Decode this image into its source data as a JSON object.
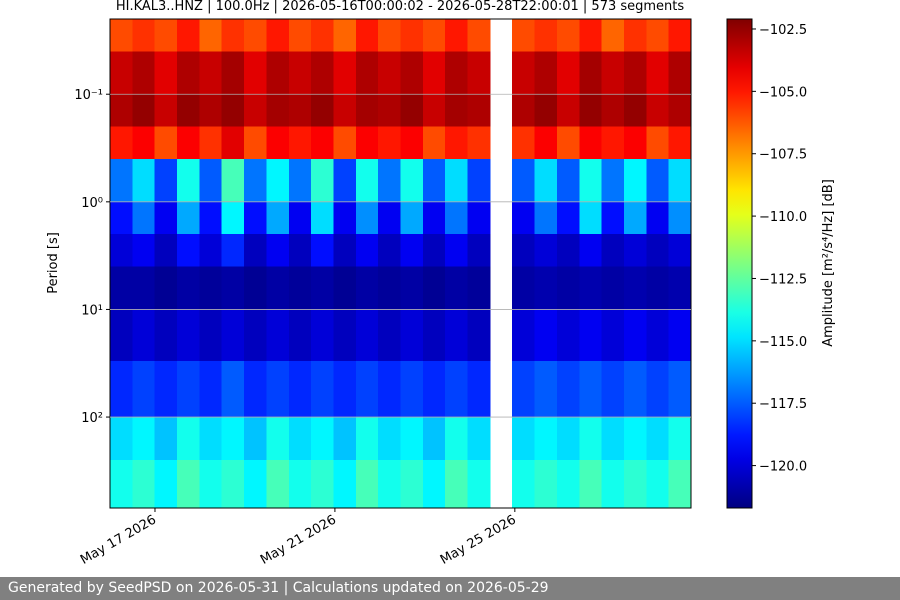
{
  "chart_data": {
    "type": "heatmap",
    "title": "HI.KAL3..HNZ | 100.0Hz | 2026-05-16T00:00:02 - 2026-05-28T22:00:01 | 573 segments",
    "ylabel": "Period [s]",
    "colorbar_label": "Amplitude [m²/s⁴/Hz] [dB]",
    "xlim": [
      "2026-05-16T00:00:02",
      "2026-05-28T22:00:01"
    ],
    "xticks": [
      {
        "value": "2026-05-17",
        "label": "May 17 2026"
      },
      {
        "value": "2026-05-21",
        "label": "May 21 2026"
      },
      {
        "value": "2026-05-25",
        "label": "May 25 2026"
      }
    ],
    "ylim": [
      0.02,
      700
    ],
    "log_y": true,
    "y_inverted": true,
    "yticks": [
      {
        "value": 0.1,
        "label": "10⁻¹"
      },
      {
        "value": 1,
        "label": "10⁰"
      },
      {
        "value": 10,
        "label": "10¹"
      },
      {
        "value": 100,
        "label": "10²"
      }
    ],
    "grid": true,
    "colormap": "jet",
    "clim": [
      -121.7,
      -102.1
    ],
    "cticks": [
      {
        "value": -102.5,
        "label": "−102.5"
      },
      {
        "value": -105,
        "label": "−105.0"
      },
      {
        "value": -107.5,
        "label": "−107.5"
      },
      {
        "value": -110,
        "label": "−110.0"
      },
      {
        "value": -112.5,
        "label": "−112.5"
      },
      {
        "value": -115,
        "label": "−115.0"
      },
      {
        "value": -117.5,
        "label": "−117.5"
      },
      {
        "value": -120,
        "label": "−120.0"
      }
    ],
    "ybins": [
      0.02,
      0.04,
      0.1,
      0.2,
      0.4,
      1,
      2,
      4,
      10,
      30,
      100,
      250,
      700
    ],
    "z": [
      [
        -106,
        -105.5,
        -106,
        -105,
        -106.5,
        -105.5,
        -106,
        -105,
        -106,
        -105.5,
        -106.5,
        -105,
        -106,
        -105.5,
        -106,
        -105,
        -106,
        null,
        -106,
        -105.5,
        -106,
        -105,
        -106.5,
        -105.5,
        -106,
        -105
      ],
      [
        -103.5,
        -103,
        -104,
        -103,
        -103.5,
        -102.8,
        -104,
        -103,
        -103.5,
        -103,
        -104,
        -103,
        -103.5,
        -103,
        -104,
        -103,
        -103.5,
        null,
        -103.5,
        -103,
        -104,
        -102.8,
        -103.5,
        -103,
        -104,
        -103
      ],
      [
        -103,
        -102.5,
        -103.5,
        -102.5,
        -103,
        -102.5,
        -103.5,
        -102.8,
        -103,
        -102.5,
        -103.5,
        -102.8,
        -103,
        -102.5,
        -103.5,
        -102.8,
        -103,
        null,
        -103,
        -102.5,
        -103.5,
        -102.5,
        -103,
        -102.5,
        -103.5,
        -103
      ],
      [
        -105,
        -104.5,
        -106,
        -104.5,
        -105.5,
        -104,
        -106,
        -104.5,
        -105,
        -104.5,
        -106,
        -104.5,
        -105,
        -104.5,
        -106,
        -105,
        -105.5,
        null,
        -105.5,
        -104.5,
        -106,
        -104.5,
        -105,
        -104.5,
        -106,
        -105
      ],
      [
        -117,
        -115,
        -118,
        -114,
        -117.5,
        -113,
        -117,
        -114.5,
        -117,
        -113.5,
        -118,
        -114,
        -117,
        -114,
        -117.5,
        -115,
        -118,
        null,
        -117.5,
        -115,
        -117.5,
        -114,
        -117,
        -114.5,
        -117.5,
        -115
      ],
      [
        -119,
        -117,
        -119.5,
        -116,
        -119,
        -114.5,
        -119,
        -116,
        -119.5,
        -115,
        -119.5,
        -116.5,
        -119.5,
        -116,
        -119.5,
        -117,
        -119.5,
        null,
        -119.5,
        -117,
        -119,
        -115,
        -119,
        -116,
        -119.5,
        -116.5
      ],
      [
        -120,
        -119.5,
        -120.5,
        -119,
        -120,
        -118.5,
        -120.5,
        -119.5,
        -120.5,
        -119,
        -120.5,
        -119.5,
        -120.5,
        -119.5,
        -120.5,
        -119.5,
        -120.5,
        null,
        -120.5,
        -120,
        -120.5,
        -119.5,
        -120.5,
        -120,
        -120.5,
        -120
      ],
      [
        -121,
        -121,
        -121.3,
        -121,
        -121.2,
        -121,
        -121.3,
        -121,
        -121.2,
        -121,
        -121.3,
        -121,
        -121.2,
        -121,
        -121.3,
        -121,
        -121.2,
        null,
        -121,
        -120.8,
        -121,
        -120.8,
        -121,
        -120.8,
        -121,
        -120.8
      ],
      [
        -120.5,
        -120,
        -120.5,
        -120,
        -120.5,
        -120,
        -120.5,
        -120,
        -120.5,
        -120,
        -120.5,
        -120,
        -120.5,
        -120,
        -120.5,
        -120,
        -120.5,
        null,
        -120,
        -119.5,
        -120,
        -119.5,
        -120,
        -119.5,
        -120,
        -119.5
      ],
      [
        -118.5,
        -118,
        -118.5,
        -118,
        -118.5,
        -117.5,
        -118.5,
        -118,
        -118.5,
        -118,
        -118.5,
        -118,
        -118.5,
        -118,
        -118.5,
        -118,
        -118.5,
        null,
        -118,
        -117.5,
        -118,
        -117.5,
        -118,
        -117.5,
        -118,
        -117.5
      ],
      [
        -115,
        -114.5,
        -115.5,
        -114,
        -115,
        -114.5,
        -115.5,
        -114,
        -115,
        -114.5,
        -115.5,
        -114,
        -115,
        -114.5,
        -115.5,
        -114,
        -115,
        null,
        -115,
        -114.5,
        -115,
        -114,
        -115,
        -114.5,
        -115,
        -114
      ],
      [
        -114,
        -113.5,
        -114.5,
        -113,
        -114,
        -113.5,
        -114.5,
        -113,
        -114,
        -113.5,
        -114.5,
        -113,
        -114,
        -113.5,
        -114.5,
        -113,
        -114,
        null,
        -114,
        -113.5,
        -114,
        -113,
        -114,
        -113.5,
        -114,
        -113
      ]
    ]
  },
  "footer": "Generated by SeedPSD on 2026-05-31 | Calculations updated on 2026-05-29"
}
